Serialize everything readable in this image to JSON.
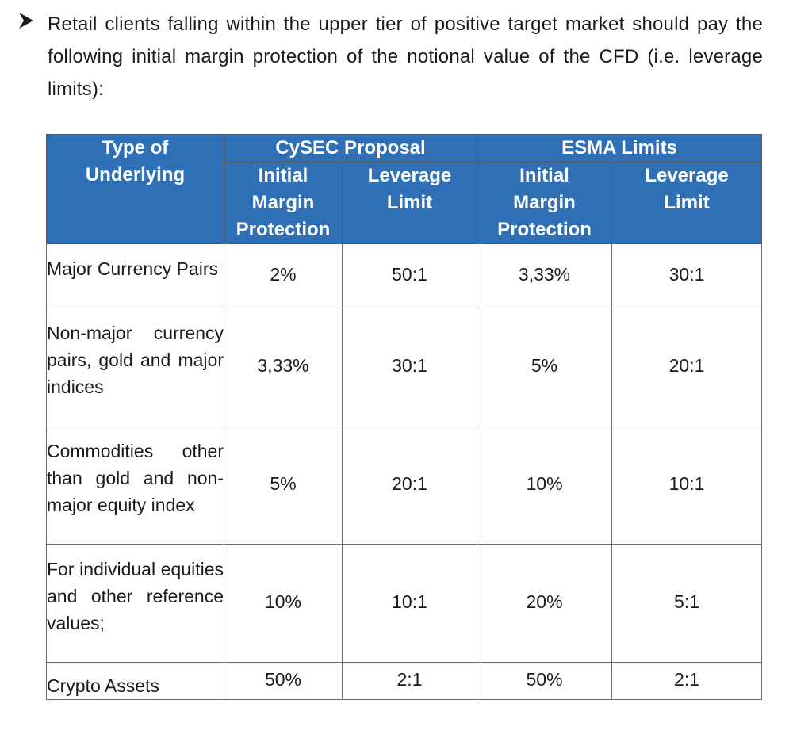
{
  "bullet": {
    "marker_icon": "arrowhead-bullet-icon",
    "text": "Retail clients falling within the upper tier of positive target market should pay the following initial margin protection of the notional value of the CFD (i.e. leverage limits):"
  },
  "table": {
    "header": {
      "underlying": "Type of Underlying",
      "cysec": "CySEC Proposal",
      "esma": "ESMA Limits",
      "margin": "Initial Margin Protection",
      "leverage": "Leverage Limit"
    },
    "rows": [
      {
        "underlying": "Major Currency Pairs",
        "cysec_margin": "2%",
        "cysec_leverage": "50:1",
        "esma_margin": "3,33%",
        "esma_leverage": "30:1"
      },
      {
        "underlying": "Non-major currency pairs, gold and major indices",
        "cysec_margin": "3,33%",
        "cysec_leverage": "30:1",
        "esma_margin": "5%",
        "esma_leverage": "20:1"
      },
      {
        "underlying": "Commodities other than gold and non-major equity index",
        "cysec_margin": "5%",
        "cysec_leverage": "20:1",
        "esma_margin": "10%",
        "esma_leverage": "10:1"
      },
      {
        "underlying": "For individual equities and other reference values;",
        "cysec_margin": "10%",
        "cysec_leverage": "10:1",
        "esma_margin": "20%",
        "esma_leverage": "5:1"
      },
      {
        "underlying": "Crypto Assets",
        "cysec_margin": "50%",
        "cysec_leverage": "2:1",
        "esma_margin": "50%",
        "esma_leverage": "2:1"
      }
    ],
    "colors": {
      "header_bg": "#2f6fb6",
      "header_text": "#ffffff",
      "border": "#6b6b6b"
    }
  }
}
